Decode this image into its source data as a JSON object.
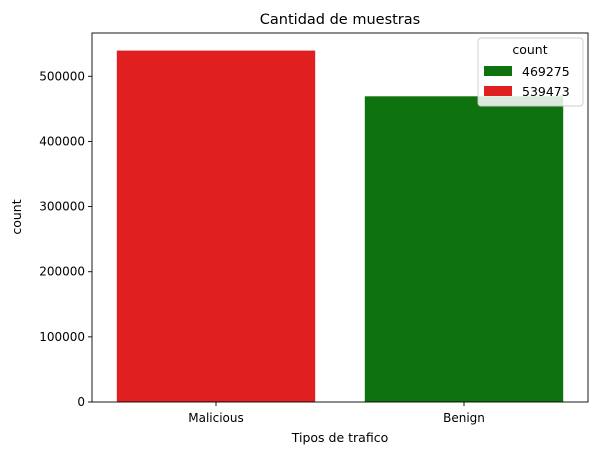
{
  "chart_data": {
    "type": "bar",
    "title": "Cantidad de muestras",
    "xlabel": "Tipos de trafico",
    "ylabel": "count",
    "categories": [
      "Malicious",
      "Benign"
    ],
    "values": [
      539473,
      469275
    ],
    "bar_colors": [
      "#e02020",
      "#0e720e"
    ],
    "ylim": [
      0,
      566447
    ],
    "yticks": [
      0,
      100000,
      200000,
      300000,
      400000,
      500000
    ],
    "ytick_labels": [
      "0",
      "100000",
      "200000",
      "300000",
      "400000",
      "500000"
    ],
    "grid": false,
    "legend": {
      "title": "count",
      "placement": "top-right",
      "entries": [
        {
          "label": "469275",
          "color": "#0e720e"
        },
        {
          "label": "539473",
          "color": "#e02020"
        }
      ]
    }
  }
}
